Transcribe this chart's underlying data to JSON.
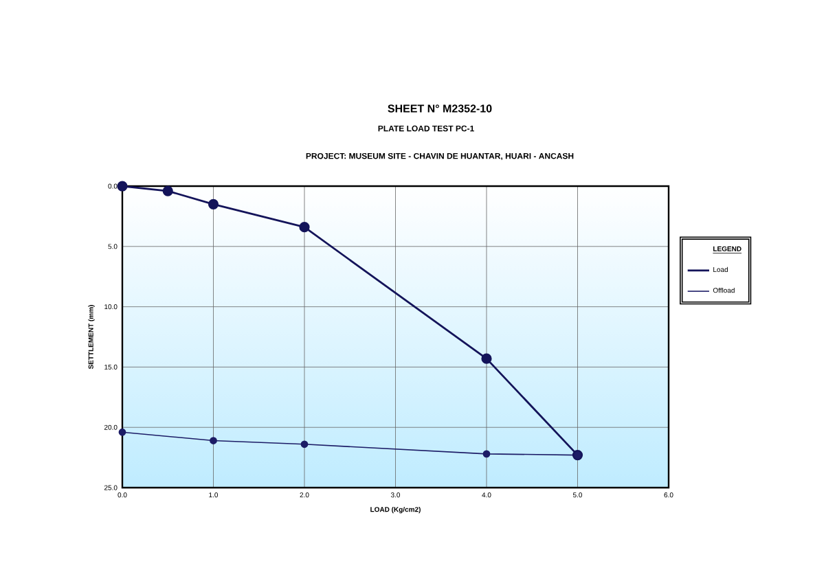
{
  "chart_data": {
    "type": "line",
    "title": "SHEET N° M2352-10",
    "subtitle": "PLATE LOAD TEST PC-1",
    "annotations": [
      "PROJECT: MUSEUM SITE - CHAVIN DE HUANTAR, HUARI - ANCASH"
    ],
    "xlabel": "LOAD (Kg/cm2)",
    "ylabel": "SETTLEMENT (mm)",
    "legend_title": "LEGEND",
    "series": [
      {
        "name": "Load",
        "color": "#14145a",
        "x": [
          0,
          0.5,
          1,
          2,
          4,
          5
        ],
        "values": [
          0,
          0.4,
          1.5,
          3.4,
          14.3,
          22.3
        ]
      },
      {
        "name": "Offload",
        "color": "#1c1c66",
        "x": [
          5,
          4,
          2,
          1,
          0
        ],
        "values": [
          22.3,
          22.2,
          21.4,
          21.1,
          20.4
        ]
      }
    ],
    "xlim": [
      0,
      6
    ],
    "ylim": [
      25,
      0
    ],
    "xticks": [
      {
        "value": 0,
        "label": "0.0"
      },
      {
        "value": 1,
        "label": "1.0"
      },
      {
        "value": 2,
        "label": "2.0"
      },
      {
        "value": 3,
        "label": "3.0"
      },
      {
        "value": 4,
        "label": "4.0"
      },
      {
        "value": 5,
        "label": "5.0"
      },
      {
        "value": 6,
        "label": "6.0"
      }
    ],
    "yticks": [
      {
        "value": 0,
        "label": "0.0"
      },
      {
        "value": 5,
        "label": "5.0"
      },
      {
        "value": 10,
        "label": "10.0"
      },
      {
        "value": 15,
        "label": "15.0"
      },
      {
        "value": 20,
        "label": "20.0"
      },
      {
        "value": 25,
        "label": "25.0"
      }
    ],
    "grid": true,
    "legend": "right",
    "marker": "circle",
    "line_style": "solid"
  }
}
